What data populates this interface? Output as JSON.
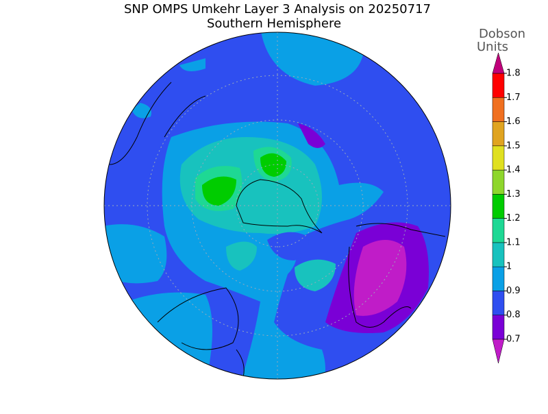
{
  "title": [
    "SNP OMPS Umkehr Layer 3 Analysis on 20250717",
    "Southern Hemisphere"
  ],
  "colorbar": {
    "label": [
      "Dobson",
      "Units"
    ],
    "ticks": [
      0.7,
      0.8,
      0.9,
      1,
      1.1,
      1.2,
      1.3,
      1.4,
      1.5,
      1.6,
      1.7,
      1.8
    ],
    "colors": [
      "#7a00d6",
      "#2f4ef0",
      "#0aa0e6",
      "#18c2be",
      "#1ed894",
      "#00cc00",
      "#8ed62c",
      "#e0e020",
      "#e0a420",
      "#f07020",
      "#ff0000"
    ],
    "under_color": "#c01cc8",
    "over_color": "#c0007a"
  }
}
